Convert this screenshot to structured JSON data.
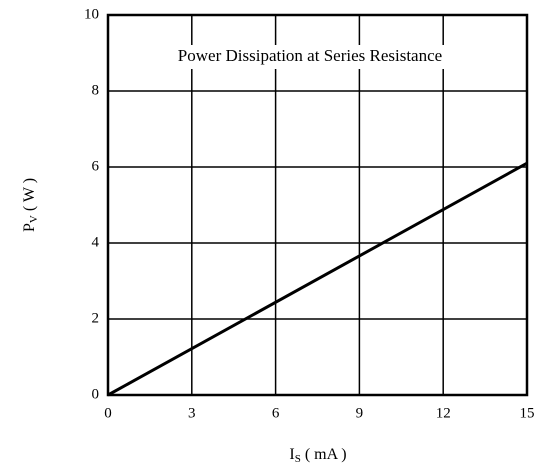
{
  "chart_data": {
    "type": "line",
    "title": "Power Dissipation at Series Resistance",
    "xlabel": [
      "I",
      "S",
      " ( mA )"
    ],
    "ylabel": [
      "P",
      "V",
      " ( W )"
    ],
    "x": [
      0,
      15
    ],
    "values": [
      0,
      6.1
    ],
    "color": "#000000",
    "xlim": [
      0,
      15
    ],
    "xticks": [
      0,
      3,
      6,
      9,
      12,
      15
    ],
    "ylim": [
      0,
      10
    ],
    "yticks": [
      0,
      2,
      4,
      6,
      8,
      10
    ],
    "grid": true
  }
}
